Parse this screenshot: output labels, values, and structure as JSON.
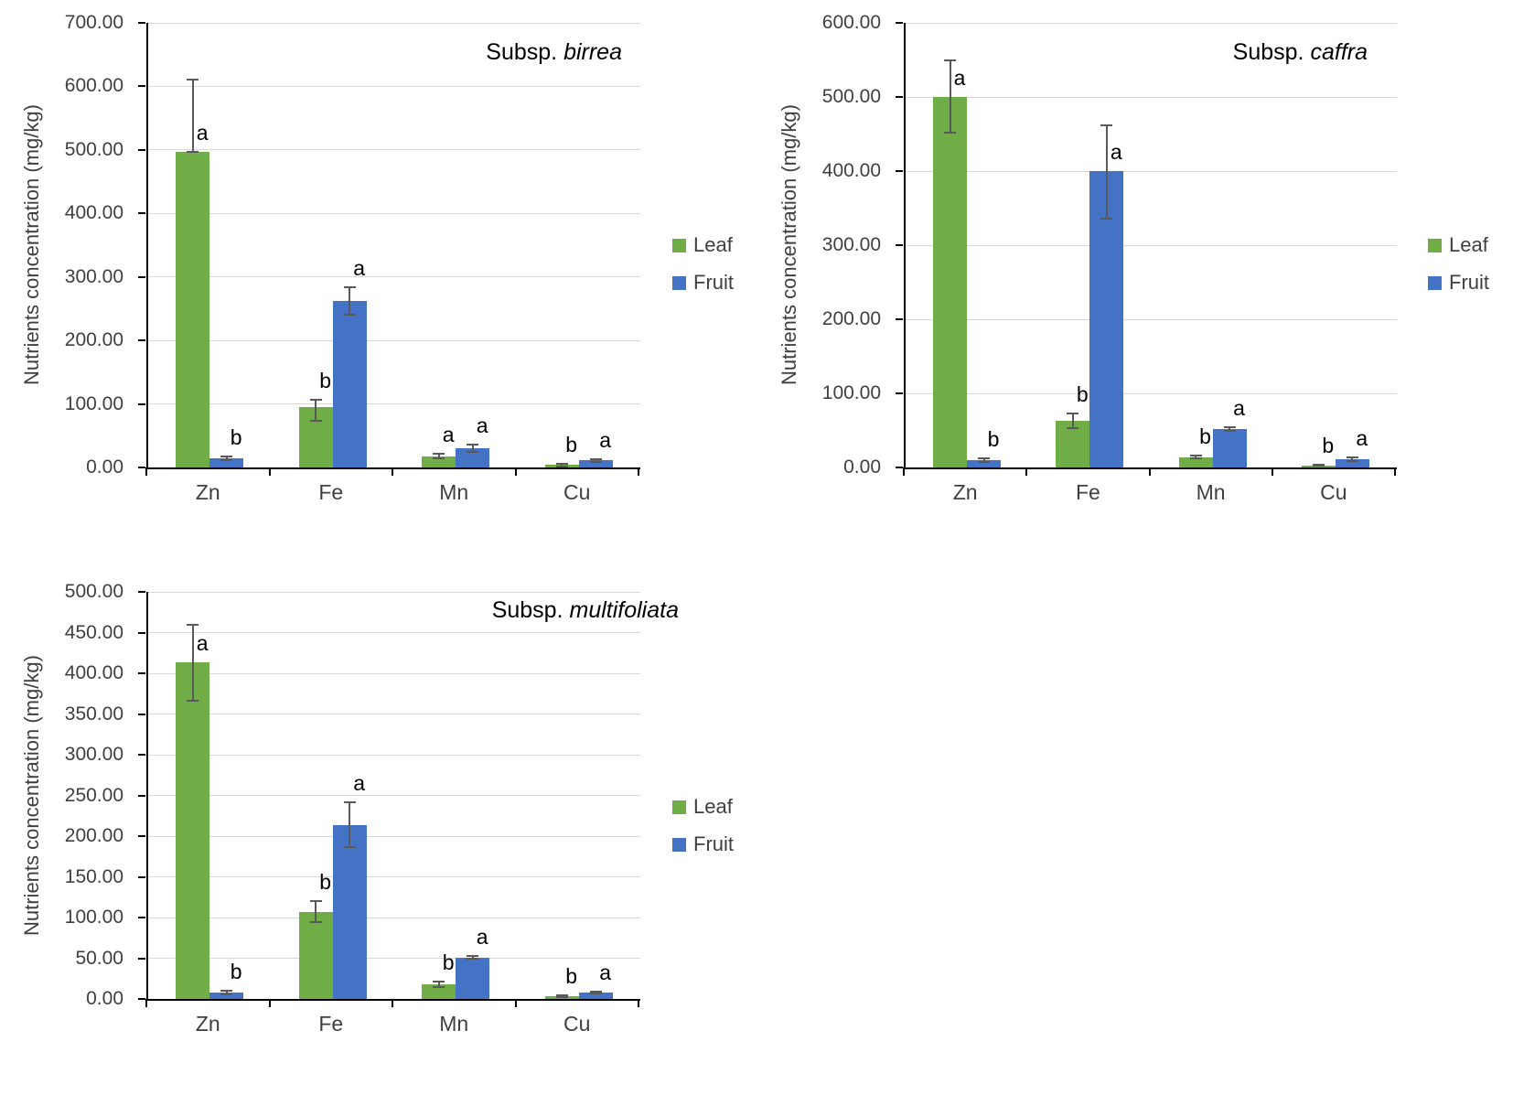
{
  "page": {
    "background": "#FFFFFF"
  },
  "y_axis_title": "Nutrients concentration (mg/kg)",
  "legend": {
    "items": [
      {
        "label": "Leaf",
        "color": "#70AD47"
      },
      {
        "label": "Fruit",
        "color": "#4472C4"
      }
    ]
  },
  "colors": {
    "leaf_green": "#70AD47",
    "fruit_blue": "#4472C4",
    "error_bar": "#595959",
    "gridline": "#D9D9D9",
    "axis_line": "#000000",
    "tick_text": "#3F3F3F"
  },
  "chart_data": [
    {
      "type": "bar",
      "title": {
        "prefix": "Subsp.",
        "species": "birrea"
      },
      "categories": [
        "Zn",
        "Fe",
        "Mn",
        "Cu"
      ],
      "xlabel": "",
      "ylabel": "Nutrients concentration (mg/kg)",
      "ylim": [
        0,
        700
      ],
      "ytick_step": 100,
      "ytick_decimals": 2,
      "grid": true,
      "legend_position": "right",
      "series": [
        {
          "name": "Leaf",
          "color": "#70AD47",
          "values": [
            497,
            95,
            18,
            4
          ],
          "err_up": [
            113,
            12,
            4,
            2
          ],
          "err_down": [
            0,
            22,
            4,
            2
          ],
          "letters": [
            "a",
            "b",
            "a",
            "b"
          ]
        },
        {
          "name": "Fruit",
          "color": "#4472C4",
          "values": [
            15,
            262,
            30,
            11
          ],
          "err_up": [
            3,
            22,
            6,
            2
          ],
          "err_down": [
            3,
            22,
            6,
            2
          ],
          "letters": [
            "b",
            "a",
            "a",
            "a"
          ]
        }
      ]
    },
    {
      "type": "bar",
      "title": {
        "prefix": "Subsp.",
        "species": "caffra"
      },
      "categories": [
        "Zn",
        "Fe",
        "Mn",
        "Cu"
      ],
      "xlabel": "",
      "ylabel": "Nutrients concentration (mg/kg)",
      "ylim": [
        0,
        600
      ],
      "ytick_step": 100,
      "ytick_decimals": 2,
      "grid": true,
      "legend_position": "right",
      "series": [
        {
          "name": "Leaf",
          "color": "#70AD47",
          "values": [
            500,
            63,
            14,
            3
          ],
          "err_up": [
            50,
            10,
            2,
            1
          ],
          "err_down": [
            48,
            10,
            2,
            1
          ],
          "letters": [
            "a",
            "b",
            "b",
            "b"
          ]
        },
        {
          "name": "Fruit",
          "color": "#4472C4",
          "values": [
            10,
            400,
            52,
            11
          ],
          "err_up": [
            2,
            62,
            2,
            2
          ],
          "err_down": [
            2,
            64,
            2,
            2
          ],
          "letters": [
            "b",
            "a",
            "a",
            "a"
          ]
        }
      ]
    },
    {
      "type": "bar",
      "title": {
        "prefix": "Subsp.",
        "species": "multifoliata"
      },
      "categories": [
        "Zn",
        "Fe",
        "Mn",
        "Cu"
      ],
      "xlabel": "",
      "ylabel": "Nutrients concentration (mg/kg)",
      "ylim": [
        0,
        500
      ],
      "ytick_step": 50,
      "ytick_decimals": 2,
      "grid": true,
      "legend_position": "right",
      "series": [
        {
          "name": "Leaf",
          "color": "#70AD47",
          "values": [
            413,
            107,
            18,
            3
          ],
          "err_up": [
            47,
            13,
            3,
            1
          ],
          "err_down": [
            47,
            13,
            3,
            1
          ],
          "letters": [
            "a",
            "b",
            "b",
            "b"
          ]
        },
        {
          "name": "Fruit",
          "color": "#4472C4",
          "values": [
            8,
            214,
            51,
            8
          ],
          "err_up": [
            2,
            28,
            1.5,
            1
          ],
          "err_down": [
            2,
            28,
            1.5,
            1
          ],
          "letters": [
            "b",
            "a",
            "a",
            "a"
          ]
        }
      ]
    }
  ]
}
